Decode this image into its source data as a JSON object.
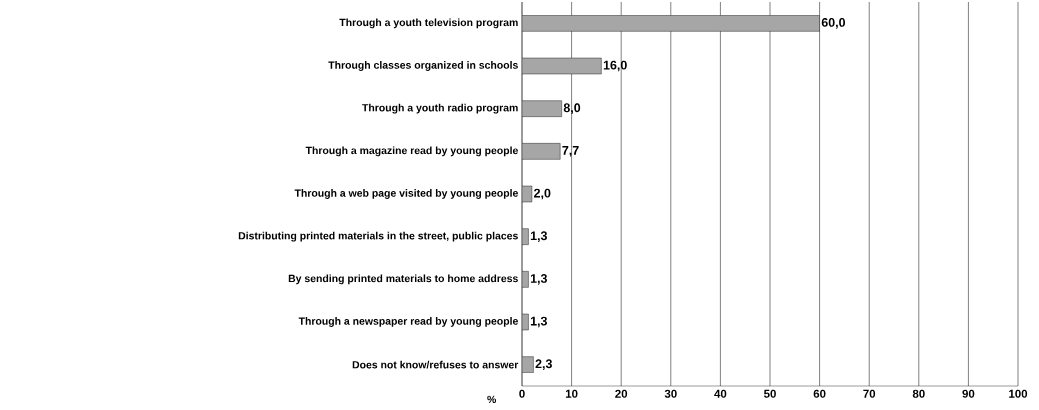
{
  "chart_data": {
    "type": "bar",
    "orientation": "horizontal",
    "xlabel": "%",
    "categories": [
      "Through a youth television program",
      "Through classes organized in schools",
      "Through a youth radio program",
      "Through a magazine read by young people",
      "Through a web page visited by young people",
      "Distributing printed materials in the street, public places",
      "By sending printed materials to home address",
      "Through a newspaper read by young people",
      "Does not know/refuses to answer"
    ],
    "values": [
      60.0,
      16.0,
      8.0,
      7.7,
      2.0,
      1.3,
      1.3,
      1.3,
      2.3
    ],
    "value_labels": [
      "60,0",
      "16,0",
      "8,0",
      "7,7",
      "2,0",
      "1,3",
      "1,3",
      "1,3",
      "2,3"
    ],
    "color": "#a6a6a6",
    "xlim": [
      0,
      100
    ],
    "xticks": [
      0,
      10,
      20,
      30,
      40,
      50,
      60,
      70,
      80,
      90,
      100
    ],
    "grid": "x"
  }
}
